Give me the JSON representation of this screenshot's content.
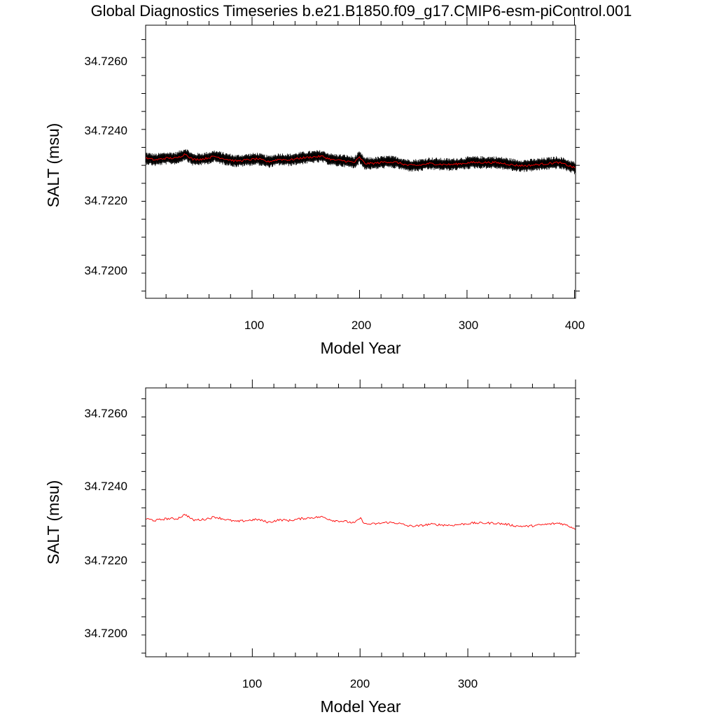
{
  "figure_title": "Global Diagnostics Timeseries b.e21.B1850.f09_g17.CMIP6-esm-piControl.001",
  "chart_data": [
    {
      "type": "line",
      "title": "",
      "xlabel": "Model Year",
      "ylabel": "SALT (msu)",
      "xlim": [
        1,
        401
      ],
      "ylim": [
        34.7192,
        34.7268
      ],
      "xticks": [
        100,
        200,
        300,
        400
      ],
      "xtick_labels": [
        "100",
        "200",
        "300",
        "400"
      ],
      "yticks": [
        34.72,
        34.722,
        34.724,
        34.726
      ],
      "ytick_labels": [
        "34.7200",
        "34.7220",
        "34.7240",
        "34.7260"
      ],
      "grid": false,
      "series": [
        {
          "style": "monthly",
          "color": "#000000",
          "x": [
            1,
            10,
            20,
            30,
            38,
            45,
            55,
            65,
            75,
            85,
            95,
            105,
            115,
            125,
            135,
            145,
            155,
            165,
            175,
            185,
            195,
            200,
            205,
            215,
            225,
            235,
            245,
            255,
            265,
            275,
            285,
            295,
            305,
            315,
            325,
            335,
            345,
            355,
            365,
            375,
            385,
            392,
            401
          ],
          "values": [
            34.7231,
            34.72305,
            34.7231,
            34.7231,
            34.72322,
            34.72306,
            34.72308,
            34.72315,
            34.72308,
            34.72302,
            34.72305,
            34.72308,
            34.723,
            34.72307,
            34.72305,
            34.7231,
            34.72313,
            34.72315,
            34.72305,
            34.72303,
            34.72298,
            34.72312,
            34.72295,
            34.72296,
            34.723,
            34.72298,
            34.7229,
            34.7229,
            34.72295,
            34.72293,
            34.72292,
            34.72295,
            34.72298,
            34.72298,
            34.72298,
            34.72295,
            34.7229,
            34.72289,
            34.72292,
            34.72295,
            34.72298,
            34.72292,
            34.72282
          ],
          "amplitude": 0.00018
        },
        {
          "style": "annual",
          "color": "#ff0000",
          "x": [
            1,
            10,
            20,
            30,
            38,
            45,
            55,
            65,
            75,
            85,
            95,
            105,
            115,
            125,
            135,
            145,
            155,
            165,
            175,
            185,
            195,
            200,
            205,
            215,
            225,
            235,
            245,
            255,
            265,
            275,
            285,
            295,
            305,
            315,
            325,
            335,
            345,
            355,
            365,
            375,
            385,
            392,
            401
          ],
          "values": [
            34.7231,
            34.72305,
            34.7231,
            34.7231,
            34.72322,
            34.72306,
            34.72308,
            34.72315,
            34.72308,
            34.72302,
            34.72305,
            34.72308,
            34.723,
            34.72307,
            34.72305,
            34.7231,
            34.72313,
            34.72315,
            34.72305,
            34.72303,
            34.72298,
            34.72312,
            34.72295,
            34.72296,
            34.723,
            34.72298,
            34.7229,
            34.7229,
            34.72295,
            34.72293,
            34.72292,
            34.72295,
            34.72298,
            34.72298,
            34.72298,
            34.72295,
            34.7229,
            34.72289,
            34.72292,
            34.72295,
            34.72298,
            34.72292,
            34.72282
          ]
        }
      ]
    },
    {
      "type": "line",
      "title": "",
      "xlabel": "Model Year",
      "ylabel": "SALT (msu)",
      "xlim": [
        1,
        400
      ],
      "ylim": [
        34.7193,
        34.7267
      ],
      "xticks": [
        100,
        200,
        300
      ],
      "xtick_labels": [
        "100",
        "200",
        "300"
      ],
      "yticks": [
        34.72,
        34.722,
        34.724,
        34.726
      ],
      "ytick_labels": [
        "34.7200",
        "34.7220",
        "34.7240",
        "34.7260"
      ],
      "grid": false,
      "series": [
        {
          "style": "annual",
          "color": "#ff0000",
          "x": [
            1,
            10,
            20,
            30,
            38,
            45,
            55,
            65,
            75,
            85,
            95,
            105,
            115,
            125,
            135,
            145,
            155,
            165,
            175,
            185,
            195,
            200,
            205,
            215,
            225,
            235,
            245,
            255,
            265,
            275,
            285,
            295,
            305,
            315,
            325,
            335,
            345,
            355,
            365,
            375,
            385,
            392,
            400
          ],
          "values": [
            34.7231,
            34.72305,
            34.7231,
            34.7231,
            34.72322,
            34.72306,
            34.72308,
            34.72315,
            34.72308,
            34.72302,
            34.72305,
            34.72308,
            34.723,
            34.72307,
            34.72305,
            34.7231,
            34.72313,
            34.72315,
            34.72305,
            34.72303,
            34.72298,
            34.72312,
            34.72295,
            34.72296,
            34.723,
            34.72298,
            34.7229,
            34.7229,
            34.72295,
            34.72293,
            34.72292,
            34.72295,
            34.72298,
            34.72298,
            34.72298,
            34.72295,
            34.7229,
            34.72289,
            34.72292,
            34.72295,
            34.72298,
            34.72292,
            34.72282
          ]
        }
      ]
    }
  ]
}
